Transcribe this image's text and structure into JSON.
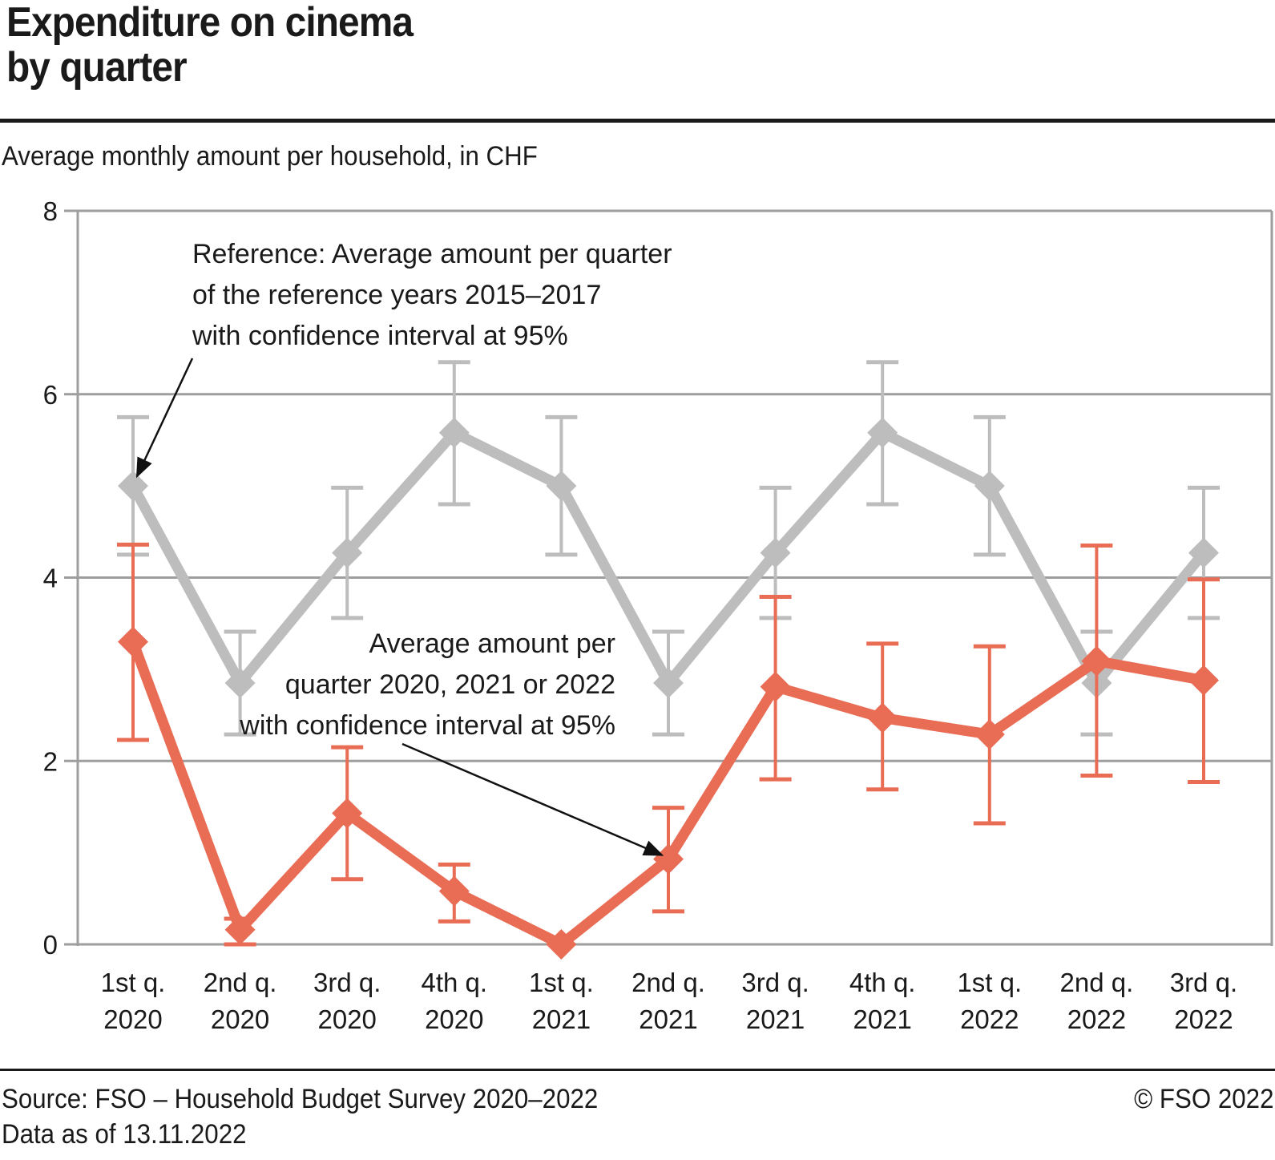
{
  "header": {
    "title_line1": "Expenditure on cinema",
    "title_line2": "by quarter",
    "subtitle": "Average monthly amount per household, in CHF"
  },
  "footer": {
    "source": "Source: FSO – Household Budget Survey 2020–2022",
    "data_as_of": "Data as of 13.11.2022",
    "copyright": "© FSO 2022"
  },
  "colors": {
    "reference": "#bdbdbd",
    "actual": "#e96c55",
    "grid": "#9e9e9e",
    "text": "#1a1a1a"
  },
  "chart_data": {
    "type": "line",
    "title": "Expenditure on cinema by quarter",
    "ylabel": "Average monthly amount per household, in CHF",
    "xlabel": "",
    "ylim": [
      0,
      8
    ],
    "yticks": [
      0,
      2,
      4,
      6,
      8
    ],
    "grid": true,
    "categories": [
      [
        "1st q.",
        "2020"
      ],
      [
        "2nd q.",
        "2020"
      ],
      [
        "3rd q.",
        "2020"
      ],
      [
        "4th q.",
        "2020"
      ],
      [
        "1st q.",
        "2021"
      ],
      [
        "2nd q.",
        "2021"
      ],
      [
        "3rd q.",
        "2021"
      ],
      [
        "4th q.",
        "2021"
      ],
      [
        "1st q.",
        "2022"
      ],
      [
        "2nd q.",
        "2022"
      ],
      [
        "3rd q.",
        "2022"
      ]
    ],
    "series": [
      {
        "name": "Reference: Average amount per quarter of the reference years 2015–2017 with confidence interval at 95%",
        "key": "reference",
        "values": [
          5.0,
          2.85,
          4.27,
          5.58,
          5.0,
          2.85,
          4.27,
          5.58,
          5.0,
          2.85,
          4.27
        ],
        "ci_low": [
          4.25,
          2.29,
          3.56,
          4.8,
          4.25,
          2.29,
          3.56,
          4.8,
          4.25,
          2.29,
          3.56
        ],
        "ci_high": [
          5.75,
          3.41,
          4.98,
          6.35,
          5.75,
          3.41,
          4.98,
          6.35,
          5.75,
          3.41,
          4.98
        ]
      },
      {
        "name": "Average amount per quarter 2020, 2021 or 2022 with confidence interval at 95%",
        "key": "actual",
        "values": [
          3.3,
          0.16,
          1.43,
          0.58,
          0.0,
          0.93,
          2.81,
          2.47,
          2.29,
          3.09,
          2.88
        ],
        "ci_low": [
          2.23,
          0.0,
          0.71,
          0.25,
          null,
          0.36,
          1.8,
          1.69,
          1.32,
          1.84,
          1.77
        ],
        "ci_high": [
          4.36,
          0.28,
          2.15,
          0.87,
          null,
          1.49,
          3.79,
          3.28,
          3.25,
          4.35,
          3.98
        ]
      }
    ],
    "annotations": [
      {
        "target_series": "reference",
        "target_index": 0,
        "lines": [
          "Reference: Average amount per quarter",
          "of the reference years 2015–2017",
          "with confidence interval at 95%"
        ]
      },
      {
        "target_series": "actual",
        "target_index": 5,
        "lines": [
          "Average amount per",
          "quarter 2020, 2021 or 2022",
          "with confidence interval at 95%"
        ]
      }
    ]
  }
}
